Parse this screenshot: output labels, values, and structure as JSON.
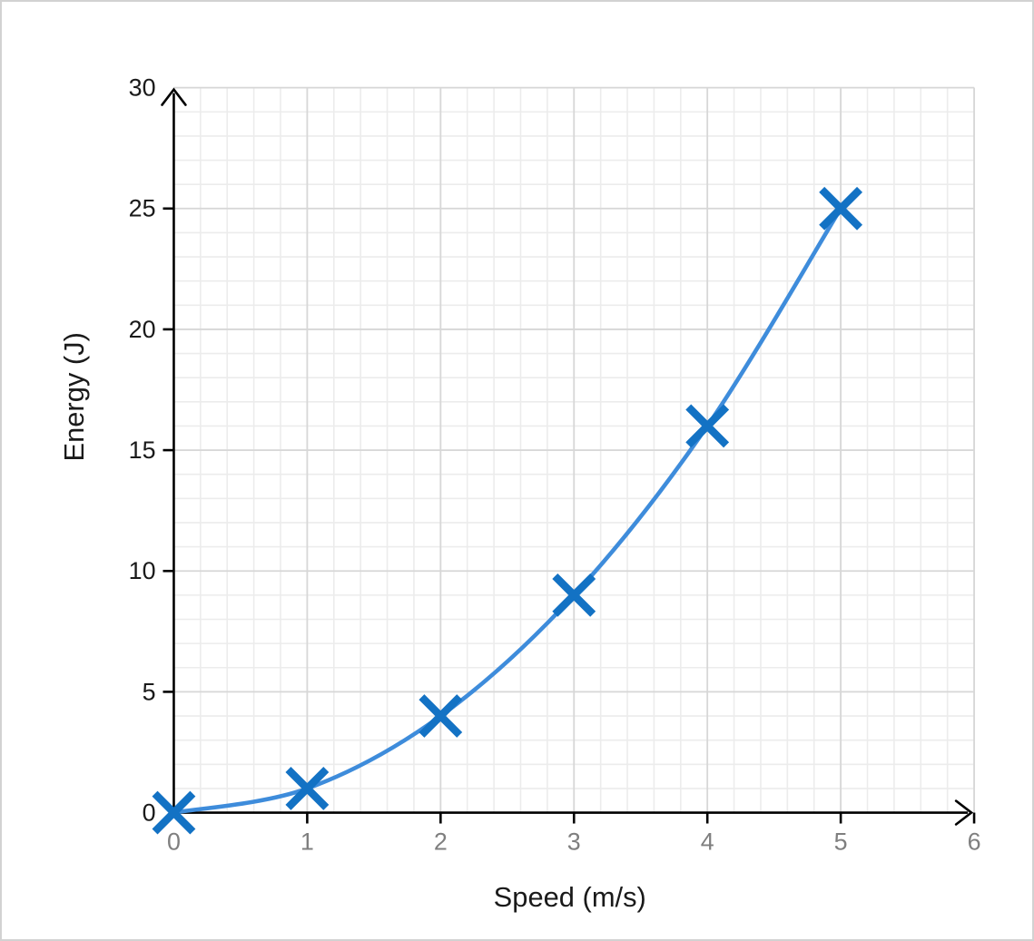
{
  "chart_data": {
    "type": "line",
    "x": [
      0,
      1,
      2,
      3,
      4,
      5
    ],
    "y": [
      0,
      1,
      4,
      9,
      16,
      25
    ],
    "xlabel": "Speed (m/s)",
    "ylabel": "Energy (J)",
    "xlim": [
      0,
      6
    ],
    "ylim": [
      0,
      30
    ],
    "x_ticks": [
      0,
      1,
      2,
      3,
      4,
      5,
      6
    ],
    "y_ticks": [
      0,
      5,
      10,
      15,
      20,
      25,
      30
    ],
    "x_minor_step": 0.2,
    "y_minor_step": 1,
    "grid": "minor and major gridlines on",
    "legend_position": "none",
    "marker": "x-cross",
    "line_style": "smooth curve through points",
    "axis_arrows": "up arrow on y-axis, right arrow on x-axis",
    "colors": {
      "line": "#3e8cdb",
      "marker": "#1372c4",
      "grid_minor": "#ececec",
      "grid_major": "#d7d7d7",
      "axis": "#000000",
      "x_tick_label": "#7f7f7f",
      "y_tick_label": "#1a1a1a",
      "axis_title": "#1a1a1a",
      "page_border": "#d2d2d2",
      "background": "#ffffff"
    }
  }
}
